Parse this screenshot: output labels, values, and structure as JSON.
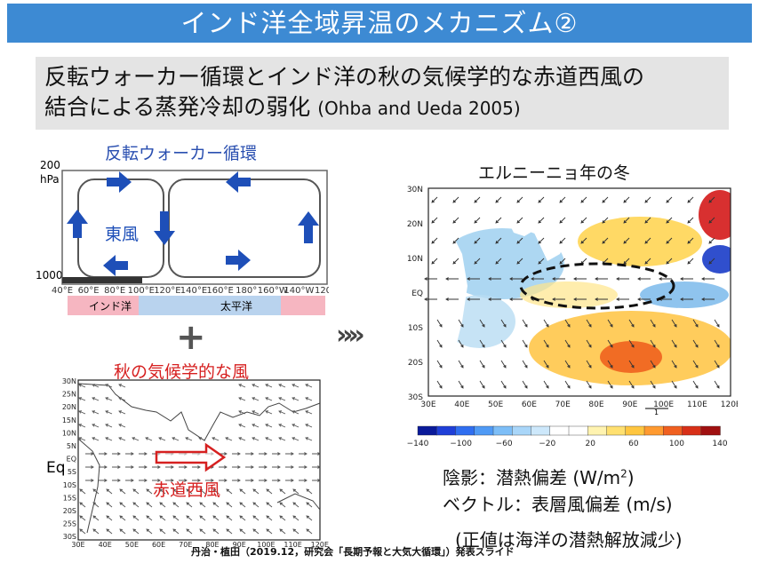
{
  "title": "インド洋全域昇温のメカニズム②",
  "subtitle": {
    "line1": "反転ウォーカー循環とインド洋の秋の気候学的な赤道西風の",
    "line2": "結合による蒸発冷却の弱化",
    "citation": "(Ohba and Ueda 2005)"
  },
  "walker_panel": {
    "heading": "反転ウォーカー循環",
    "pressure_top": "200",
    "pressure_unit": "hPa",
    "pressure_bottom": "1000",
    "wind_label": "東風",
    "lon_ticks": [
      "40°E",
      "60°E",
      "80°E",
      "100°E",
      "120°E",
      "140°E",
      "160°E",
      "180°",
      "160°W",
      "140°W",
      "120°"
    ],
    "ocean_labels": [
      "インド洋",
      "太平洋"
    ]
  },
  "plus_sign": "+",
  "autumn_panel": {
    "heading": "秋の気候学的な風",
    "eq_label": "Eq",
    "wind_label": "赤道西風",
    "lat_ticks": [
      "30N",
      "25N",
      "20N",
      "15N",
      "10N",
      "5N",
      "EQ",
      "5S",
      "10S",
      "15S",
      "20S",
      "25S",
      "30S"
    ],
    "lon_ticks": [
      "30E",
      "40E",
      "50E",
      "60E",
      "70E",
      "80E",
      "90E",
      "100E",
      "110E",
      "120E"
    ]
  },
  "chevrons": "»»",
  "elnino_panel": {
    "heading": "エルニーニョ年の冬",
    "lat_ticks": [
      "30N",
      "20N",
      "10N",
      "EQ",
      "10S",
      "20S",
      "30S"
    ],
    "lon_ticks": [
      "30E",
      "40E",
      "50E",
      "60E",
      "70E",
      "80E",
      "90E",
      "100E",
      "110E",
      "120E"
    ],
    "ref_vector": "1",
    "colorbar_ticks": [
      "−140",
      "−100",
      "−60",
      "−20",
      "20",
      "60",
      "100",
      "140"
    ],
    "colors": {
      "strong_negative": "#1a3cc8",
      "weak_negative": "#9fd0f0",
      "weak_positive": "#ffd24a",
      "strong_positive": "#d41a1a"
    }
  },
  "notes": {
    "shading": "陰影：潜熱偏差 (W/m",
    "shading_sup": "2",
    "shading_close": ")",
    "vectors": "ベクトル：表層風偏差 (m/s)",
    "sign": "(正値は海洋の潜熱解放減少)"
  },
  "footer": "丹治・植田（2019.12，研究会「長期予報と大気大循環」）発表スライド"
}
